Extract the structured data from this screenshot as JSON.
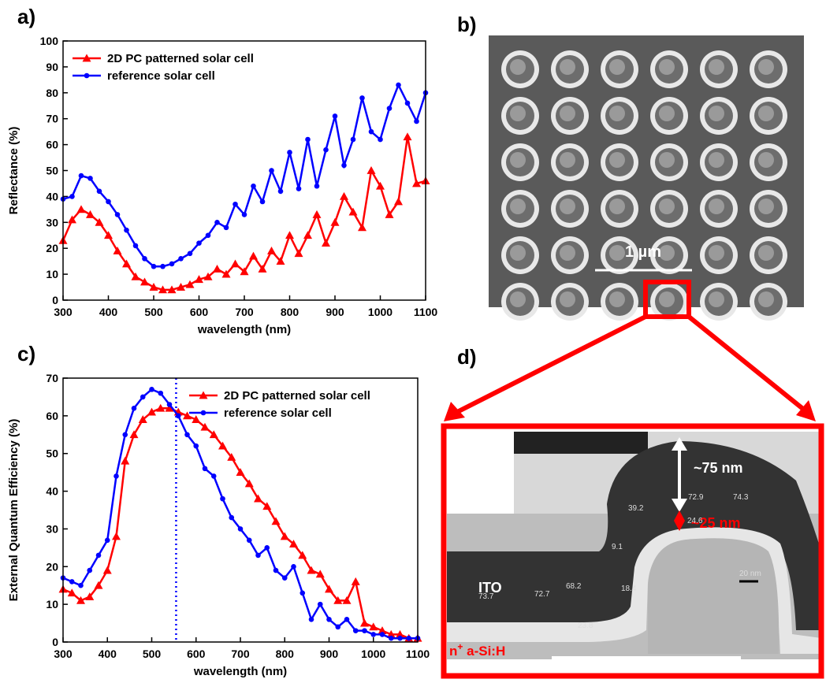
{
  "chart_data": [
    {
      "type": "line",
      "panel_label": "a)",
      "xlabel": "wavelength (nm)",
      "ylabel": "Reflectance (%)",
      "x": [
        300,
        320,
        340,
        360,
        380,
        400,
        420,
        440,
        460,
        480,
        500,
        520,
        540,
        560,
        580,
        600,
        620,
        640,
        660,
        680,
        700,
        720,
        740,
        760,
        780,
        800,
        820,
        840,
        860,
        880,
        900,
        920,
        940,
        960,
        980,
        1000,
        1020,
        1040,
        1060,
        1080,
        1100
      ],
      "series": [
        {
          "name": "2D PC patterned solar cell",
          "color": "#ff0000",
          "marker": "triangle",
          "values": [
            23,
            31,
            35,
            33,
            30,
            25,
            19,
            14,
            9,
            7,
            5,
            4,
            4,
            5,
            6,
            8,
            9,
            12,
            10,
            14,
            11,
            17,
            12,
            19,
            15,
            25,
            18,
            25,
            33,
            22,
            30,
            40,
            34,
            28,
            50,
            44,
            33,
            38,
            63,
            45,
            46
          ]
        },
        {
          "name": "reference solar cell",
          "color": "#0000ff",
          "marker": "circle",
          "values": [
            39,
            40,
            48,
            47,
            42,
            38,
            33,
            27,
            21,
            16,
            13,
            13,
            14,
            16,
            18,
            22,
            25,
            30,
            28,
            37,
            33,
            44,
            38,
            50,
            42,
            57,
            43,
            62,
            44,
            58,
            71,
            52,
            62,
            78,
            65,
            62,
            74,
            83,
            76,
            69,
            80
          ]
        }
      ],
      "xlim": [
        300,
        1100
      ],
      "xticks": [
        300,
        400,
        500,
        600,
        700,
        800,
        900,
        1000,
        1100
      ],
      "ylim": [
        0,
        100
      ],
      "yticks": [
        0,
        10,
        20,
        30,
        40,
        50,
        60,
        70,
        80,
        90,
        100
      ],
      "legend": "upper left"
    },
    {
      "type": "line",
      "panel_label": "c)",
      "xlabel": "wavelength (nm)",
      "ylabel": "External Quantum Efficiency (%)",
      "x": [
        300,
        320,
        340,
        360,
        380,
        400,
        420,
        440,
        460,
        480,
        500,
        520,
        540,
        560,
        580,
        600,
        620,
        640,
        660,
        680,
        700,
        720,
        740,
        760,
        780,
        800,
        820,
        840,
        860,
        880,
        900,
        920,
        940,
        960,
        980,
        1000,
        1020,
        1040,
        1060,
        1080,
        1100
      ],
      "series": [
        {
          "name": "2D PC patterned solar cell",
          "color": "#ff0000",
          "marker": "triangle",
          "values": [
            14,
            13,
            11,
            12,
            15,
            19,
            28,
            48,
            55,
            59,
            61,
            62,
            62,
            61,
            60,
            59,
            57,
            55,
            52,
            49,
            45,
            42,
            38,
            36,
            32,
            28,
            26,
            23,
            19,
            18,
            14,
            11,
            11,
            16,
            5,
            4,
            3,
            2,
            2,
            1,
            1
          ]
        },
        {
          "name": "reference solar cell",
          "color": "#0000ff",
          "marker": "circle",
          "values": [
            17,
            16,
            15,
            19,
            23,
            27,
            44,
            55,
            62,
            65,
            67,
            66,
            63,
            60,
            55,
            52,
            46,
            44,
            38,
            33,
            30,
            27,
            23,
            25,
            19,
            17,
            20,
            13,
            6,
            10,
            6,
            4,
            6,
            3,
            3,
            2,
            2,
            1,
            1,
            1,
            1
          ]
        }
      ],
      "xlim": [
        300,
        1100
      ],
      "xticks": [
        300,
        400,
        500,
        600,
        700,
        800,
        900,
        1000,
        1100
      ],
      "ylim": [
        0,
        70
      ],
      "yticks": [
        0,
        10,
        20,
        30,
        40,
        50,
        60,
        70
      ],
      "legend": "upper right",
      "vline": 555
    }
  ],
  "image_b": {
    "panel_label": "b)",
    "scale_bar": "1 µm"
  },
  "image_d": {
    "panel_label": "d)",
    "thickness_top": "~75 nm",
    "thickness_bottom": "~25 nm",
    "layer_ito": "ITO",
    "layer_n": {
      "base": "n",
      "sup": "+",
      "rest": " a-Si:H"
    },
    "measurements": [
      "72.9",
      "74.3",
      "39.2",
      "24.6",
      "9.1",
      "18.4",
      "73.7",
      "72.7",
      "68.2",
      "23.8",
      "20 nm"
    ]
  }
}
